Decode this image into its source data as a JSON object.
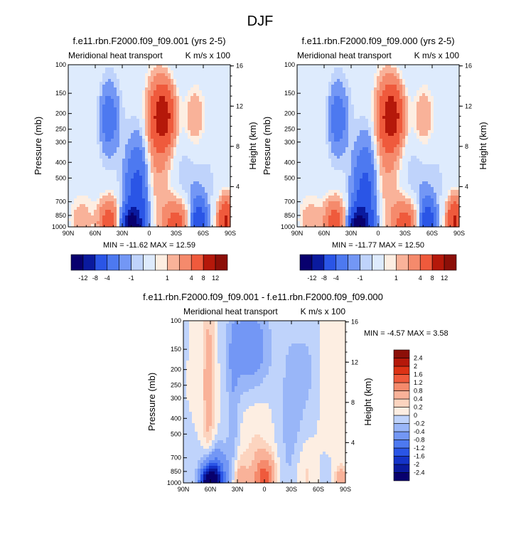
{
  "figure": {
    "title": "DJF",
    "palette": [
      "#08006e",
      "#0a1a9e",
      "#1433c8",
      "#2a55e6",
      "#4d79f0",
      "#7397f5",
      "#99b6f8",
      "#bfd3fb",
      "#deebfd",
      "#fdeee2",
      "#fcd4bf",
      "#f9b299",
      "#f58a6c",
      "#ef5a3c",
      "#dc3215",
      "#b5180a",
      "#8c0f08"
    ],
    "colors": {
      "blue_deep": "#08006e",
      "blue_light": "#deebfd",
      "red_light": "#fdeee2",
      "red_deep": "#8c0f08"
    }
  },
  "chart_data": [
    {
      "type": "heatmap",
      "title": "f.e11.rbn.F2000.f09_f09.001 (yrs 2-5)",
      "left_label": "Meridional heat transport",
      "right_label": "K m/s x 100",
      "xlabel": "",
      "ylabel": "Pressure (mb)",
      "ylabel_right": "Height (km)",
      "x_ticks": [
        "90N",
        "60N",
        "30N",
        "0",
        "30S",
        "60S",
        "90S"
      ],
      "y_ticks": [
        1000,
        850,
        700,
        500,
        400,
        300,
        250,
        200,
        150,
        100
      ],
      "y_ticks_right": [
        4,
        8,
        12,
        16
      ],
      "min_label": "MIN = -11.62  MAX =  12.59",
      "min": -11.62,
      "max": 12.59,
      "colorbar": {
        "orientation": "horizontal",
        "labels": [
          "-12",
          "-8",
          "-4",
          "-1",
          "1",
          "4",
          "8",
          "12"
        ]
      },
      "features": [
        {
          "lat": -15,
          "p": 205,
          "v": 10,
          "wlat": 9,
          "wp": 0.13
        },
        {
          "lat": -10,
          "p": 330,
          "v": 3,
          "wlat": 13,
          "wp": 0.35
        },
        {
          "lat": -50,
          "p": 210,
          "v": 2.5,
          "wlat": 9,
          "wp": 0.15
        },
        {
          "lat": 45,
          "p": 215,
          "v": -3,
          "wlat": 8,
          "wp": 0.15
        },
        {
          "lat": 65,
          "p": 200,
          "v": 0.8,
          "wlat": 12,
          "wp": 0.3
        },
        {
          "lat": 20,
          "p": 980,
          "v": -12,
          "wlat": 7,
          "wp": 0.07
        },
        {
          "lat": 15,
          "p": 760,
          "v": -5,
          "wlat": 9,
          "wp": 0.25
        },
        {
          "lat": 8,
          "p": 520,
          "v": -1.5,
          "wlat": 7,
          "wp": 0.3
        },
        {
          "lat": -30,
          "p": 950,
          "v": 6,
          "wlat": 10,
          "wp": 0.1
        },
        {
          "lat": 45,
          "p": 940,
          "v": 6,
          "wlat": 8,
          "wp": 0.1
        },
        {
          "lat": -55,
          "p": 950,
          "v": -6,
          "wlat": 6,
          "wp": 0.1
        },
        {
          "lat": -85,
          "p": 920,
          "v": 9,
          "wlat": 6,
          "wp": 0.1
        },
        {
          "lat": 75,
          "p": 920,
          "v": 2,
          "wlat": 10,
          "wp": 0.12
        },
        {
          "lat": -40,
          "p": 550,
          "v": -0.8,
          "wlat": 25,
          "wp": 0.5
        }
      ]
    },
    {
      "type": "heatmap",
      "title": "f.e11.rbn.F2000.f09_f09.000 (yrs 2-5)",
      "left_label": "Meridional heat transport",
      "right_label": "K m/s x 100",
      "xlabel": "",
      "ylabel": "Pressure (mb)",
      "ylabel_right": "Height (km)",
      "x_ticks": [
        "90N",
        "60N",
        "30N",
        "0",
        "30S",
        "60S",
        "90S"
      ],
      "y_ticks": [
        1000,
        850,
        700,
        500,
        400,
        300,
        250,
        200,
        150,
        100
      ],
      "y_ticks_right": [
        4,
        8,
        12,
        16
      ],
      "min_label": "MIN = -11.77  MAX =  12.50",
      "min": -11.77,
      "max": 12.5,
      "colorbar": {
        "orientation": "horizontal",
        "labels": [
          "-12",
          "-8",
          "-4",
          "-1",
          "1",
          "4",
          "8",
          "12"
        ]
      },
      "features": [
        {
          "lat": -15,
          "p": 205,
          "v": 10,
          "wlat": 9,
          "wp": 0.13
        },
        {
          "lat": -10,
          "p": 330,
          "v": 3,
          "wlat": 13,
          "wp": 0.35
        },
        {
          "lat": -50,
          "p": 210,
          "v": 2.5,
          "wlat": 9,
          "wp": 0.15
        },
        {
          "lat": 45,
          "p": 215,
          "v": -3,
          "wlat": 8,
          "wp": 0.15
        },
        {
          "lat": 65,
          "p": 200,
          "v": 0.8,
          "wlat": 12,
          "wp": 0.3
        },
        {
          "lat": 22,
          "p": 980,
          "v": -12,
          "wlat": 7,
          "wp": 0.07
        },
        {
          "lat": 16,
          "p": 760,
          "v": -5,
          "wlat": 9,
          "wp": 0.25
        },
        {
          "lat": 8,
          "p": 520,
          "v": -1.5,
          "wlat": 7,
          "wp": 0.3
        },
        {
          "lat": -30,
          "p": 950,
          "v": 6,
          "wlat": 10,
          "wp": 0.1
        },
        {
          "lat": 48,
          "p": 940,
          "v": 6,
          "wlat": 8,
          "wp": 0.1
        },
        {
          "lat": -55,
          "p": 950,
          "v": -6,
          "wlat": 6,
          "wp": 0.1
        },
        {
          "lat": -85,
          "p": 920,
          "v": 9,
          "wlat": 6,
          "wp": 0.1
        },
        {
          "lat": 75,
          "p": 920,
          "v": 2,
          "wlat": 10,
          "wp": 0.12
        },
        {
          "lat": -40,
          "p": 550,
          "v": -0.8,
          "wlat": 25,
          "wp": 0.5
        }
      ]
    },
    {
      "type": "heatmap",
      "title": "f.e11.rbn.F2000.f09_f09.001 - f.e11.rbn.F2000.f09_f09.000",
      "left_label": "Meridional heat transport",
      "right_label": "K m/s x 100",
      "xlabel": "",
      "ylabel": "Pressure (mb)",
      "ylabel_right": "Height (km)",
      "x_ticks": [
        "90N",
        "60N",
        "30N",
        "0",
        "30S",
        "60S",
        "90S"
      ],
      "y_ticks": [
        1000,
        850,
        700,
        500,
        400,
        300,
        250,
        200,
        150,
        100
      ],
      "y_ticks_right": [
        4,
        8,
        12,
        16
      ],
      "min_label": "MIN =  -4.57  MAX =   3.58",
      "min": -4.57,
      "max": 3.58,
      "colorbar": {
        "orientation": "vertical",
        "labels": [
          "-2.4",
          "-2",
          "-1.6",
          "-1.2",
          "-0.8",
          "-0.4",
          "-0.2",
          "0",
          "0.2",
          "0.4",
          "0.8",
          "1.2",
          "1.6",
          "2",
          "2.4"
        ]
      },
      "features": [
        {
          "lat": 60,
          "p": 990,
          "v": -3,
          "wlat": 7,
          "wp": 0.06
        },
        {
          "lat": 55,
          "p": 900,
          "v": -1.2,
          "wlat": 10,
          "wp": 0.12
        },
        {
          "lat": 62,
          "p": 250,
          "v": 0.6,
          "wlat": 5,
          "wp": 0.4
        },
        {
          "lat": 35,
          "p": 400,
          "v": -0.3,
          "wlat": 5,
          "wp": 0.6
        },
        {
          "lat": 15,
          "p": 150,
          "v": -0.7,
          "wlat": 15,
          "wp": 0.2
        },
        {
          "lat": 28,
          "p": 960,
          "v": 0.6,
          "wlat": 7,
          "wp": 0.1
        },
        {
          "lat": 0,
          "p": 930,
          "v": 1.3,
          "wlat": 8,
          "wp": 0.1
        },
        {
          "lat": 10,
          "p": 600,
          "v": 0.2,
          "wlat": 12,
          "wp": 0.4
        },
        {
          "lat": -30,
          "p": 480,
          "v": -0.3,
          "wlat": 10,
          "wp": 0.5
        },
        {
          "lat": -45,
          "p": 880,
          "v": 0.3,
          "wlat": 10,
          "wp": 0.15
        },
        {
          "lat": -70,
          "p": 920,
          "v": -0.2,
          "wlat": 10,
          "wp": 0.15
        },
        {
          "lat": -85,
          "p": 960,
          "v": 0.7,
          "wlat": 5,
          "wp": 0.06
        },
        {
          "lat": -75,
          "p": 250,
          "v": 0.2,
          "wlat": 10,
          "wp": 0.5
        },
        {
          "lat": -50,
          "p": 200,
          "v": -0.2,
          "wlat": 10,
          "wp": 0.25
        }
      ]
    }
  ]
}
